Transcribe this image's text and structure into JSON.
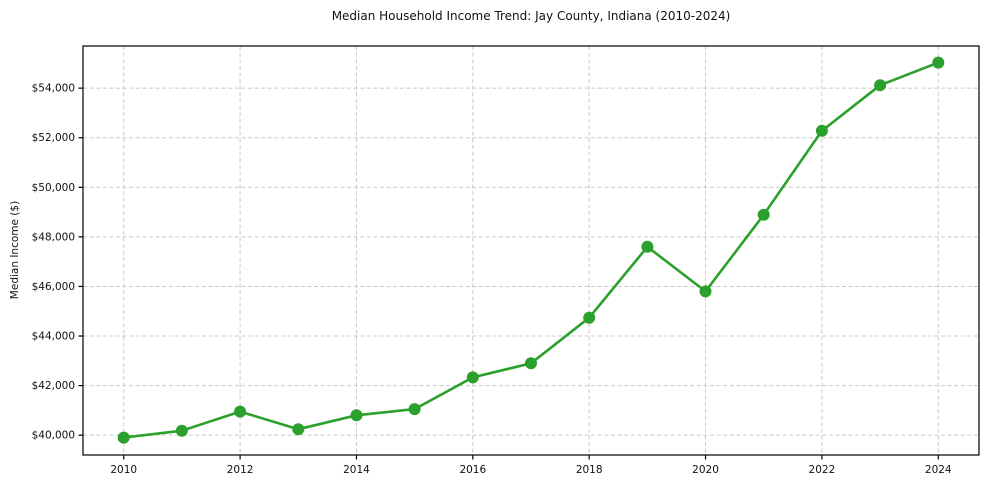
{
  "chart_data": {
    "type": "line",
    "title": "Median Household Income Trend: Jay County, Indiana (2010-2024)",
    "xlabel": "",
    "ylabel": "Median Income ($)",
    "x": [
      2010,
      2011,
      2012,
      2013,
      2014,
      2015,
      2016,
      2017,
      2018,
      2019,
      2020,
      2021,
      2022,
      2023,
      2024
    ],
    "series": [
      {
        "name": "Median Household Income",
        "values": [
          39900,
          40180,
          40950,
          40240,
          40800,
          41050,
          42330,
          42900,
          44740,
          47600,
          45800,
          48890,
          52280,
          54120,
          55030
        ],
        "color": "#2ca02c"
      }
    ],
    "xticks": [
      2010,
      2012,
      2014,
      2016,
      2018,
      2020,
      2022,
      2024
    ],
    "xtick_labels": [
      "2010",
      "2012",
      "2014",
      "2016",
      "2018",
      "2020",
      "2022",
      "2024"
    ],
    "yticks": [
      40000,
      42000,
      44000,
      46000,
      48000,
      50000,
      52000,
      54000
    ],
    "ytick_labels": [
      "$40,000",
      "$42,000",
      "$44,000",
      "$46,000",
      "$48,000",
      "$50,000",
      "$52,000",
      "$54,000"
    ],
    "xlim": [
      2009.3,
      2024.7
    ],
    "ylim": [
      39200,
      55700
    ],
    "grid": true,
    "grid_style": "dashed",
    "grid_color": "#c9c9c9",
    "axis_color": "#000000",
    "background_color": "#ffffff",
    "legend": "none",
    "marker": "circle",
    "marker_size": 12,
    "line_width": 2.6
  }
}
